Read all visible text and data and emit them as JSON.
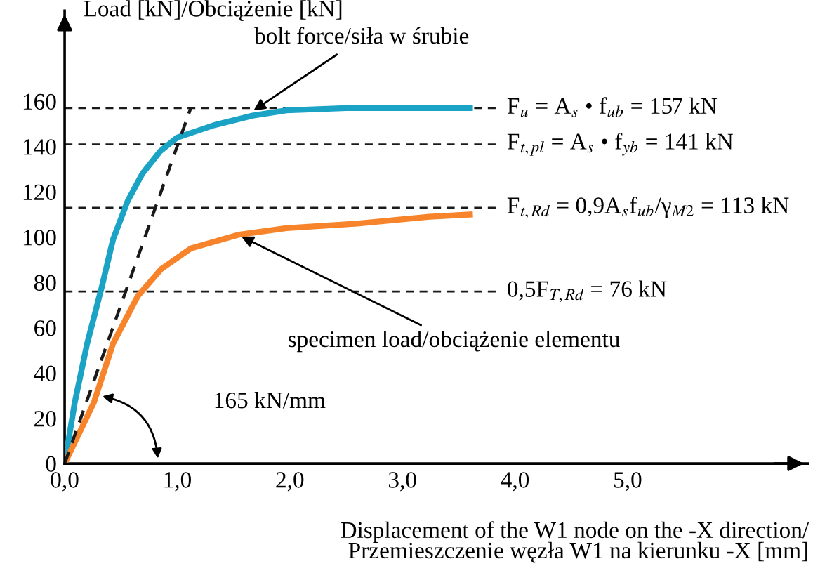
{
  "chart_data": {
    "type": "line",
    "ylabel": "Load [kN]/Obciążenie [kN]",
    "xlabel": "Displacement of the W1 node on the -X direction/\nPrzemieszczenie węzła W1 na kierunku -X [mm]",
    "xlim": [
      0,
      6.6
    ],
    "ylim": [
      0,
      200
    ],
    "xticks": [
      {
        "value": 0,
        "label": "0,0"
      },
      {
        "value": 1,
        "label": "1,0"
      },
      {
        "value": 2,
        "label": "2,0"
      },
      {
        "value": 3,
        "label": "3,0"
      },
      {
        "value": 4,
        "label": "4,0"
      },
      {
        "value": 5,
        "label": "5,0"
      }
    ],
    "yticks": [
      0,
      20,
      40,
      60,
      80,
      100,
      120,
      140,
      160
    ],
    "grid": false,
    "marker": "none",
    "series": [
      {
        "color": "#1ba3c6",
        "x": [
          0,
          0.09,
          0.2,
          0.33,
          0.43,
          0.56,
          0.69,
          0.85,
          1.0,
          1.33,
          1.67,
          1.97,
          2.5,
          3.0,
          3.6
        ],
        "values": [
          0,
          27,
          53,
          78,
          99,
          116,
          128,
          138,
          144,
          149.5,
          153.7,
          156,
          157,
          157,
          157
        ]
      },
      {
        "color": "#f7842a",
        "x": [
          0,
          0.26,
          0.43,
          0.65,
          0.86,
          1.12,
          1.54,
          1.97,
          2.6,
          3.24,
          3.6
        ],
        "values": [
          0,
          27,
          53,
          74,
          86,
          95,
          101,
          104,
          106,
          109,
          110
        ]
      },
      {
        "color": "#1a1a1a",
        "line_style": "dashed",
        "x": [
          0,
          1.12
        ],
        "values": [
          0,
          157
        ]
      }
    ],
    "ref_lines": [
      {
        "axis": "y",
        "value": 157,
        "label": "F$_{u}$ = A$_{s}$ • f$_{ub}$ = 157 kN",
        "color": "#1a1a1a",
        "line_style": "dashed"
      },
      {
        "axis": "y",
        "value": 141,
        "label": "F$_{t,pl}$ = A$_{s}$ • f$_{yb}$ = 141 kN",
        "color": "#1a1a1a",
        "line_style": "dashed"
      },
      {
        "axis": "y",
        "value": 113,
        "label": "F$_{t,Rd}$ = 0,9A$_{s}$f$_{ub}$/γ$_{M2}$ = 113 kN",
        "color": "#1a1a1a",
        "line_style": "dashed"
      },
      {
        "axis": "y",
        "value": 76,
        "label": "0,5F$_{T,Rd}$ = 76 kN",
        "color": "#1a1a1a",
        "line_style": "dashed"
      }
    ],
    "annotations": [
      {
        "text": "bolt force/siła w śrubie",
        "x": 1.65,
        "y": 155
      },
      {
        "text": "specimen load/obciążenie elementu",
        "x": 1.54,
        "y": 101
      },
      "165 kN/mm"
    ]
  }
}
